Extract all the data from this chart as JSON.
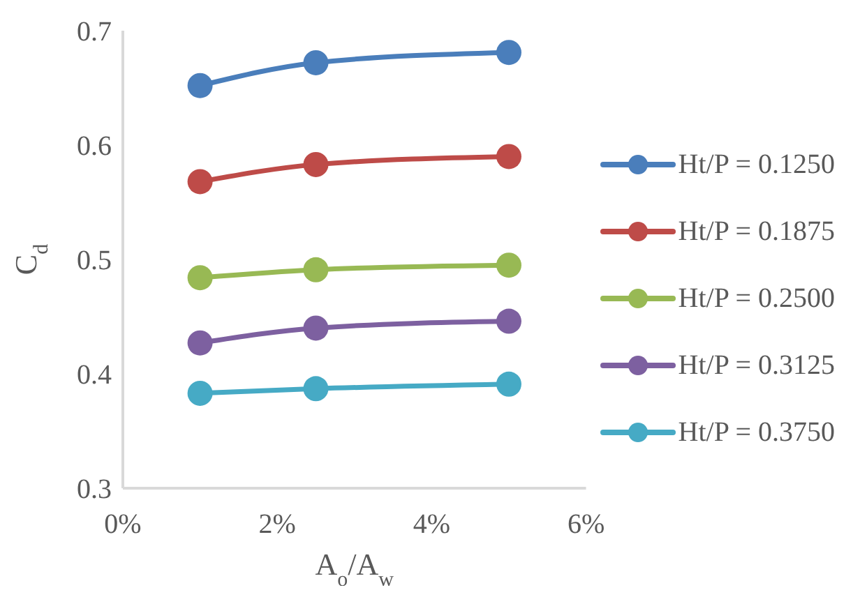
{
  "chart_data": {
    "type": "line",
    "xlabel": "A$_{o}$/A$_{w}$",
    "ylabel": "C$_{d}$",
    "x": [
      0.01,
      0.025,
      0.05
    ],
    "xlim": [
      0,
      0.06
    ],
    "xticks": [
      {
        "value": 0,
        "label": "0%"
      },
      {
        "value": 0.02,
        "label": "2%"
      },
      {
        "value": 0.04,
        "label": "4%"
      },
      {
        "value": 0.06,
        "label": "6%"
      }
    ],
    "ylim": [
      0.3,
      0.7
    ],
    "yticks": [
      0.3,
      0.4,
      0.5,
      0.6,
      0.7
    ],
    "grid": false,
    "legend": "right",
    "marker": "circle",
    "line_style": "solid",
    "series": [
      {
        "name": "Ht/P = 0.1250",
        "color": "#4a7ebb",
        "values": [
          0.652,
          0.672,
          0.681
        ]
      },
      {
        "name": "Ht/P = 0.1875",
        "color": "#be4b48",
        "values": [
          0.568,
          0.583,
          0.59
        ]
      },
      {
        "name": "Ht/P = 0.2500",
        "color": "#98b954",
        "values": [
          0.484,
          0.491,
          0.495
        ]
      },
      {
        "name": "Ht/P = 0.3125",
        "color": "#7d60a0",
        "values": [
          0.427,
          0.44,
          0.446
        ]
      },
      {
        "name": "Ht/P = 0.3750",
        "color": "#46aac5",
        "values": [
          0.383,
          0.387,
          0.391
        ]
      }
    ]
  }
}
